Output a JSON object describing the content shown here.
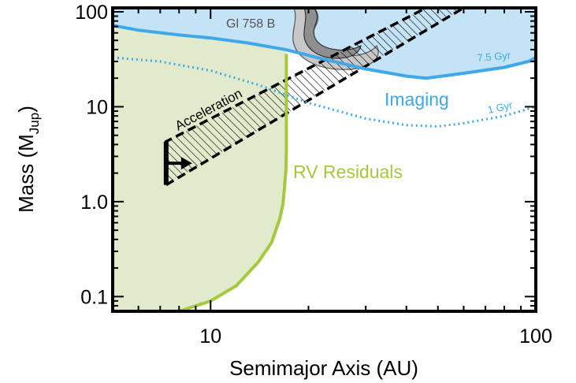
{
  "chart_data": {
    "type": "area",
    "xlabel": "Semimajor Axis (AU)",
    "ylabel_main": "Mass (M",
    "ylabel_sub": "Jup",
    "ylabel_close": ")",
    "xscale": "log",
    "yscale": "log",
    "xlim": [
      5,
      100
    ],
    "ylim": [
      0.07,
      110
    ],
    "xticks": [
      {
        "value": 10,
        "label": "10"
      },
      {
        "value": 100,
        "label": "100"
      }
    ],
    "yticks": [
      {
        "value": 0.1,
        "label": "0.1"
      },
      {
        "value": 1,
        "label": "1.0"
      },
      {
        "value": 10,
        "label": "10"
      },
      {
        "value": 100,
        "label": "100"
      }
    ],
    "grid": false,
    "regions": {
      "imaging": {
        "label": "Imaging",
        "color": "#3ea8e8",
        "fill": "#c4e3f6",
        "curve_label": "7.5 Gyr",
        "x": [
          5,
          6,
          8,
          10,
          13,
          17,
          22,
          30,
          40,
          46,
          60,
          80,
          95,
          100
        ],
        "y": [
          72,
          64,
          57,
          53,
          47,
          40,
          32,
          25,
          21,
          20,
          22.5,
          26,
          30,
          33
        ]
      },
      "imaging_1gyr": {
        "curve_label": "1 Gyr",
        "color": "#3ea8e8",
        "x": [
          5,
          7,
          10,
          14,
          20,
          30,
          40,
          50,
          60,
          80,
          100
        ],
        "y": [
          33,
          30,
          24,
          17,
          11,
          7.5,
          6.4,
          6.2,
          6.7,
          8,
          10
        ]
      },
      "rv_residuals": {
        "label": "RV Residuals",
        "color": "#a4c93c",
        "fill": "#e1ebcb",
        "x": [
          5,
          8,
          10,
          12,
          14,
          15.4,
          16.3,
          16.7,
          16.9,
          17.05,
          17.1,
          17.1
        ],
        "y": [
          0.07,
          0.07,
          0.09,
          0.13,
          0.23,
          0.37,
          0.65,
          0.95,
          1.5,
          2.2,
          3.5,
          36
        ]
      },
      "acceleration": {
        "label": "Acceleration",
        "arrow_x": 7.3,
        "arrow_y_min": 1.5,
        "arrow_y_max": 4.3,
        "lower_edge_x": [
          7.3,
          60
        ],
        "lower_edge_y": [
          1.5,
          110
        ],
        "upper_edge_x": [
          7.3,
          46
        ],
        "upper_edge_y": [
          4.3,
          110
        ]
      },
      "gl758b": {
        "label": "Gl 758 B",
        "fill": "#8f8f8f",
        "halo": "#c8c8c8"
      }
    }
  }
}
